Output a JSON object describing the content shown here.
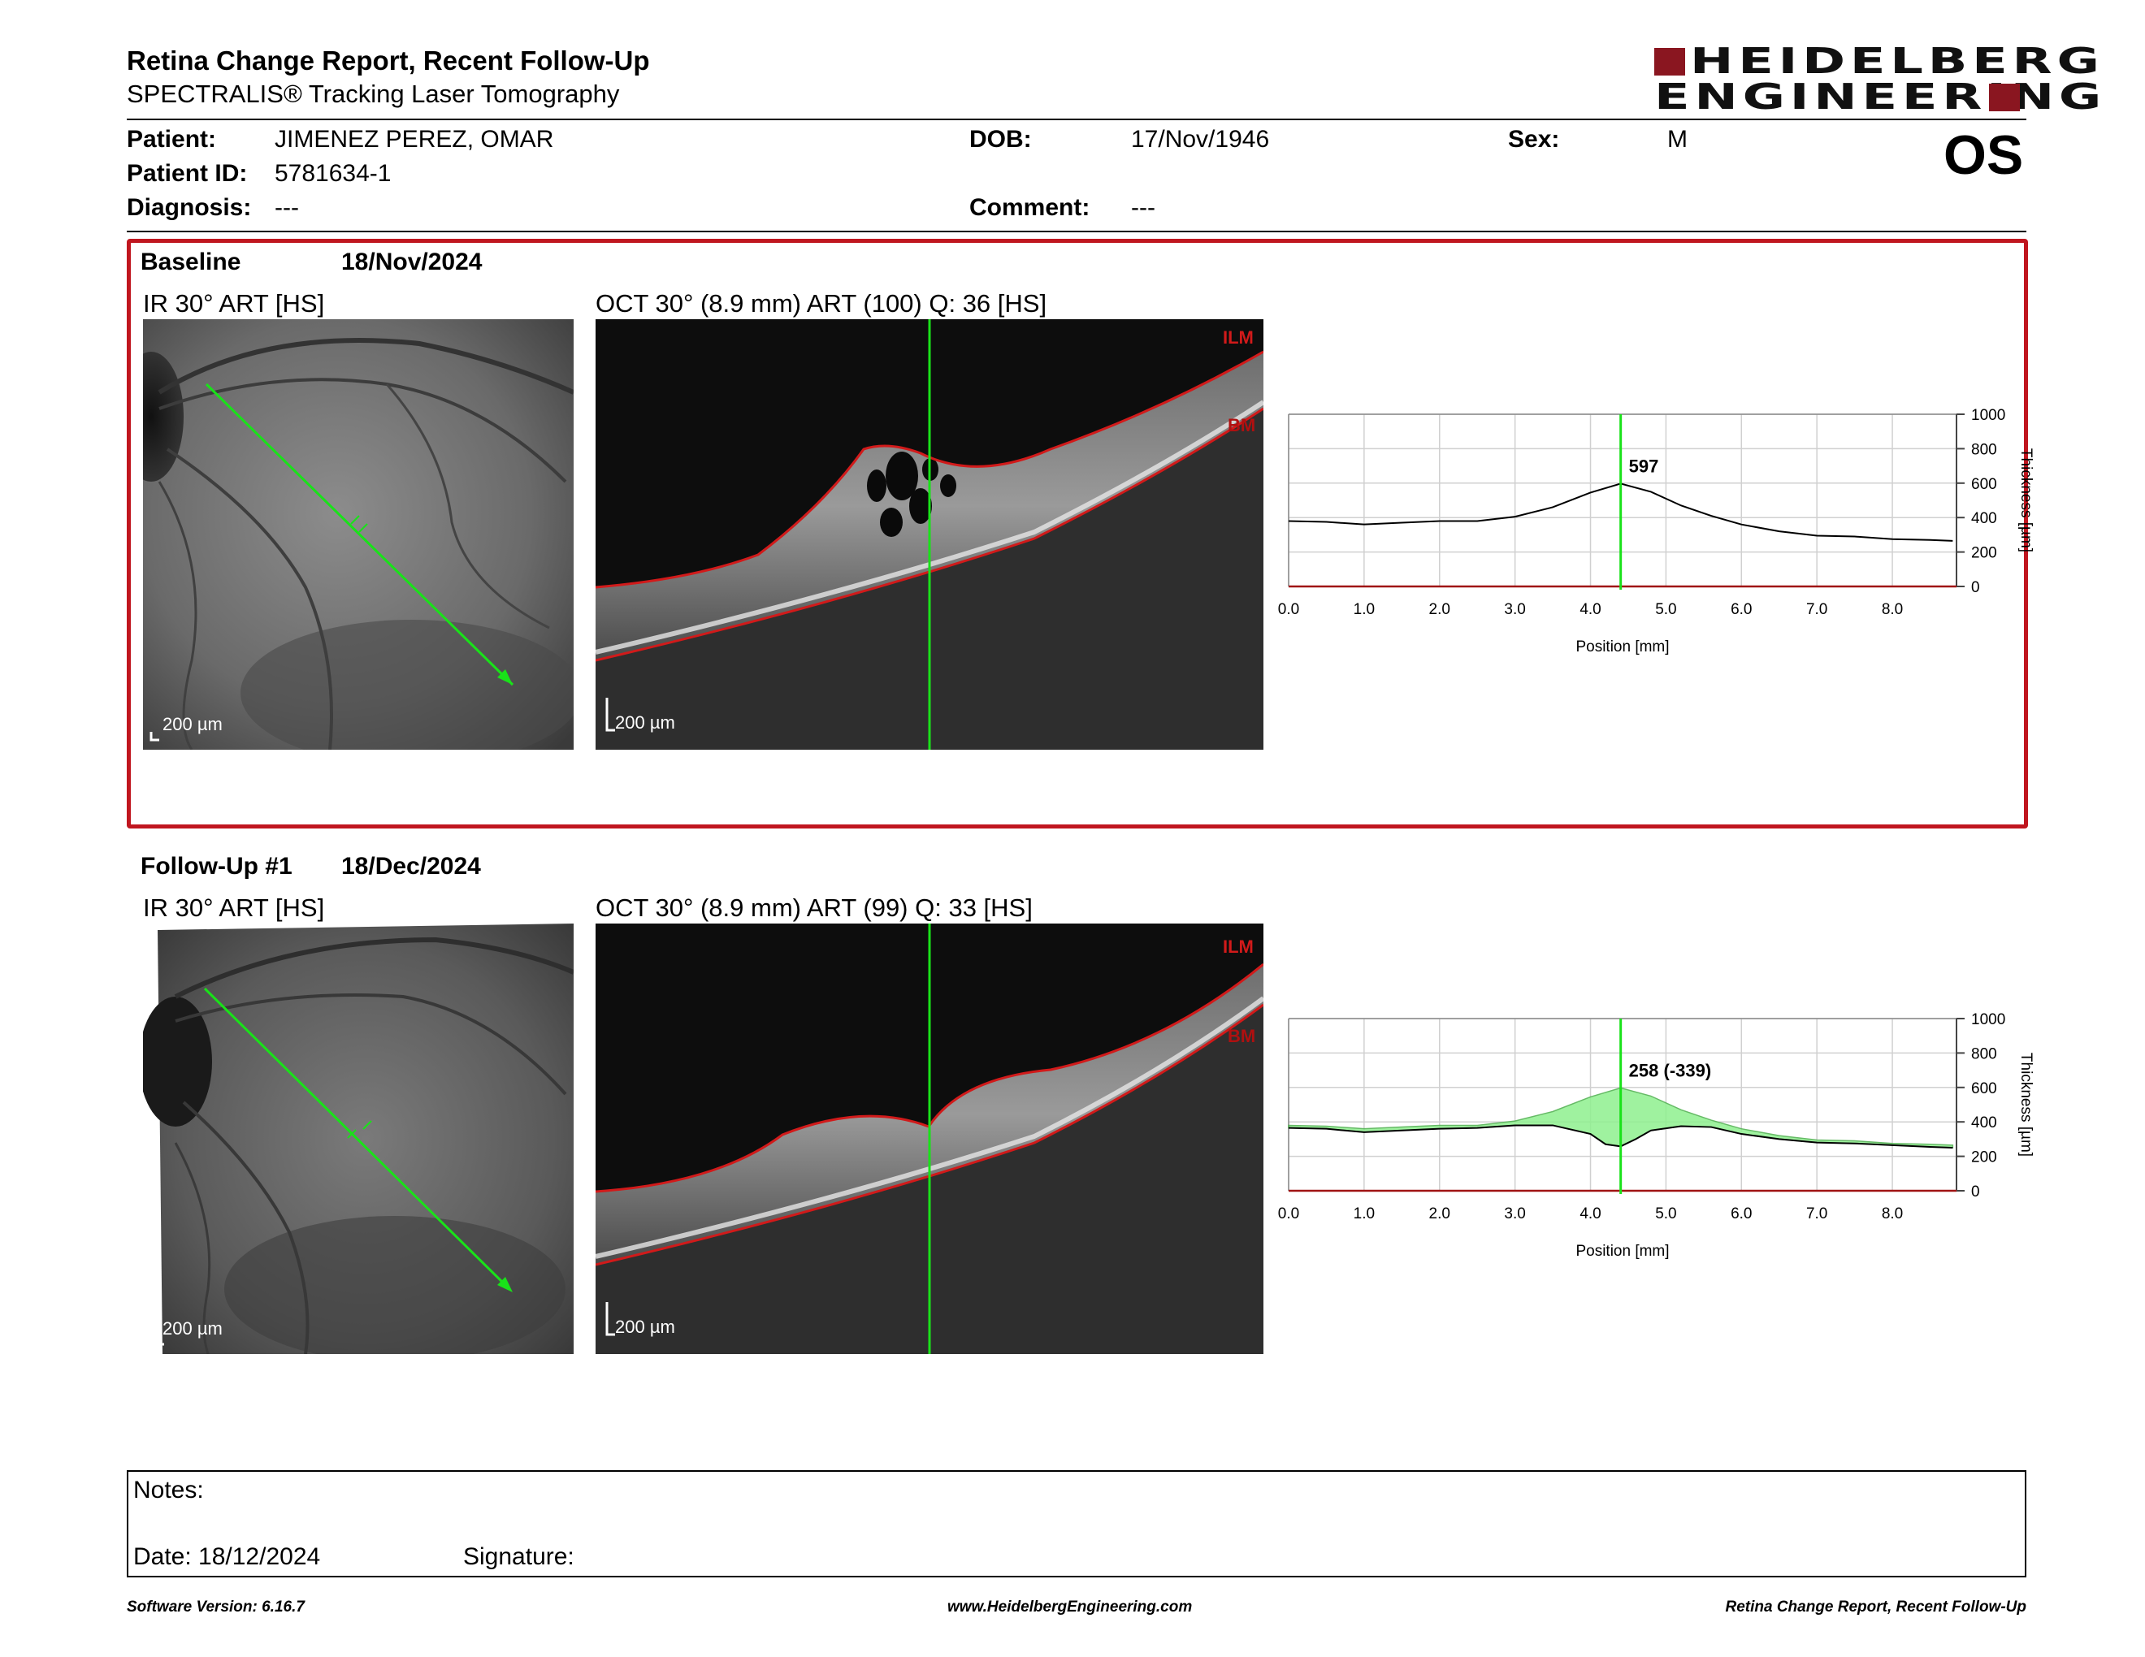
{
  "header": {
    "title": "Retina Change Report, Recent Follow-Up",
    "subtitle": "SPECTRALIS® Tracking Laser Tomography",
    "logo_line1": "HEIDELBERG",
    "logo_line2": "ENGINEERING"
  },
  "patient": {
    "name_label": "Patient:",
    "name": "JIMENEZ PEREZ, OMAR",
    "id_label": "Patient ID:",
    "id": "5781634-1",
    "diagnosis_label": "Diagnosis:",
    "diagnosis": "---",
    "dob_label": "DOB:",
    "dob": "17/Nov/1946",
    "comment_label": "Comment:",
    "comment": "---",
    "sex_label": "Sex:",
    "sex": "M",
    "eye": "OS"
  },
  "baseline": {
    "label": "Baseline",
    "date": "18/Nov/2024",
    "ir_title": "IR 30° ART [HS]",
    "oct_title": "OCT 30° (8.9 mm) ART (100) Q: 36 [HS]",
    "scale": "200 µm",
    "ilm": "ILM",
    "bm": "BM",
    "readout": "597"
  },
  "followup": {
    "label": "Follow-Up #1",
    "date": "18/Dec/2024",
    "ir_title": "IR 30° ART [HS]",
    "oct_title": "OCT 30° (8.9 mm) ART (99) Q: 33 [HS]",
    "scale": "200 µm",
    "ilm": "ILM",
    "bm": "BM",
    "readout": "258 (-339)"
  },
  "chart_data": [
    {
      "type": "line",
      "xlabel": "Position [mm]",
      "ylabel": "Thickness [µm]",
      "xlim": [
        0,
        8.85
      ],
      "ylim": [
        0,
        1000
      ],
      "x_ticks": [
        "0.0",
        "1.0",
        "2.0",
        "3.0",
        "4.0",
        "5.0",
        "6.0",
        "7.0",
        "8.0"
      ],
      "y_ticks": [
        "0",
        "200",
        "400",
        "600",
        "800",
        "1000"
      ],
      "cursor_x": 4.4,
      "grid": true,
      "series": [
        {
          "x": [
            0,
            0.5,
            1,
            1.5,
            2,
            2.5,
            3,
            3.5,
            4,
            4.4,
            4.8,
            5.2,
            5.6,
            6,
            6.5,
            7,
            7.5,
            8,
            8.5,
            8.8
          ],
          "values": [
            380,
            375,
            360,
            370,
            380,
            380,
            405,
            460,
            545,
            597,
            550,
            470,
            410,
            360,
            320,
            295,
            290,
            275,
            270,
            265
          ]
        }
      ]
    },
    {
      "type": "area",
      "xlabel": "Position [mm]",
      "ylabel": "Thickness [µm]",
      "xlim": [
        0,
        8.85
      ],
      "ylim": [
        0,
        1000
      ],
      "x_ticks": [
        "0.0",
        "1.0",
        "2.0",
        "3.0",
        "4.0",
        "5.0",
        "6.0",
        "7.0",
        "8.0"
      ],
      "y_ticks": [
        "0",
        "200",
        "400",
        "600",
        "800",
        "1000"
      ],
      "cursor_x": 4.4,
      "grid": true,
      "series": [
        {
          "x": [
            0,
            0.5,
            1,
            1.5,
            2,
            2.5,
            3,
            3.5,
            4,
            4.4,
            4.8,
            5.2,
            5.6,
            6,
            6.5,
            7,
            7.5,
            8,
            8.5,
            8.8
          ],
          "values": [
            380,
            375,
            360,
            370,
            380,
            380,
            405,
            460,
            545,
            597,
            550,
            470,
            410,
            360,
            320,
            295,
            290,
            275,
            270,
            265
          ]
        },
        {
          "x": [
            0,
            0.5,
            1,
            1.5,
            2,
            2.5,
            3,
            3.5,
            4,
            4.2,
            4.4,
            4.6,
            4.8,
            5.2,
            5.6,
            6,
            6.5,
            7,
            7.5,
            8,
            8.5,
            8.8
          ],
          "values": [
            365,
            360,
            340,
            350,
            360,
            365,
            380,
            380,
            330,
            270,
            258,
            300,
            350,
            375,
            370,
            330,
            300,
            280,
            275,
            265,
            255,
            250
          ]
        }
      ]
    }
  ],
  "notes": {
    "notes_label": "Notes:",
    "date_label": "Date: 18/12/2024",
    "signature_label": "Signature:"
  },
  "footer": {
    "software": "Software Version: 6.16.7",
    "url": "www.HeidelbergEngineering.com",
    "report_name": "Retina Change Report, Recent Follow-Up"
  }
}
